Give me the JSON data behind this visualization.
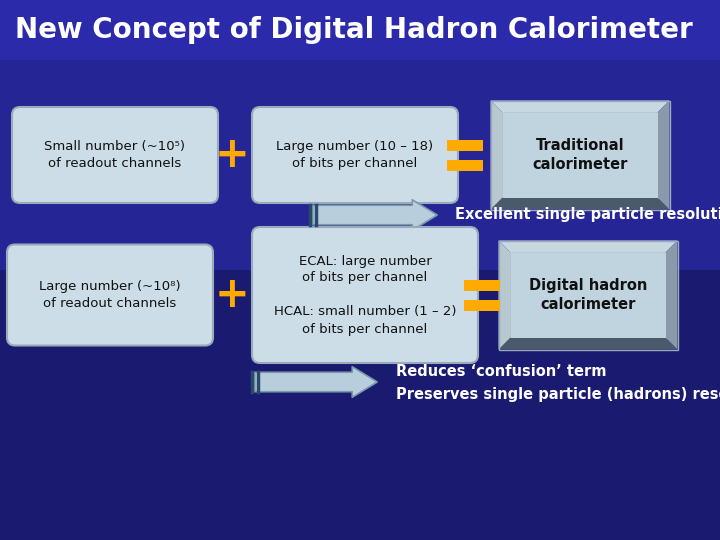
{
  "title": "New Concept of Digital Hadron Calorimeter",
  "bg_color_top": "#2a2a9a",
  "bg_color_bot": "#1a1a6a",
  "title_color": "#ffffff",
  "title_fontsize": 20,
  "box_face_color": "#ccdde8",
  "box_edge_color": "#99aabb",
  "plus_color": "#ffaa00",
  "equals_color": "#ffaa00",
  "arrow_face": "#c0d8e8",
  "arrow_edge": "#8899aa",
  "text_color": "#111111",
  "white_text": "#ffffff",
  "label1_row1": "Small number (~10⁵)\nof readout channels",
  "label2_row1": "Large number (10 – 18)\nof bits per channel",
  "label3_row1": "Traditional\ncalorimeter",
  "label1_row2": "Large number (~10⁸)\nof readout channels",
  "label2_row2": "ECAL: large number\nof bits per channel\n\nHCAL: small number (1 – 2)\nof bits per channel",
  "label3_row2": "Digital hadron\ncalorimeter",
  "arrow1_text": "Excellent single particle resolution",
  "arrow2_text1": "Reduces ‘confusion’ term",
  "arrow2_text2": "Preserves single particle (hadrons) resolutions"
}
